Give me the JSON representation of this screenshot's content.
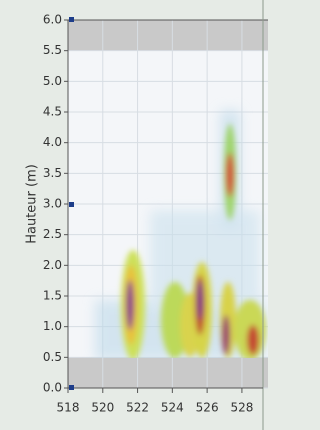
{
  "chart_data": {
    "type": "heatmap",
    "y_label": "Hauteur (m)",
    "xlim": [
      518,
      529.5
    ],
    "xticks": [
      518,
      520,
      522,
      524,
      526,
      528
    ],
    "ylim": [
      0,
      6
    ],
    "yticks": [
      {
        "value": 0,
        "label": "0.0"
      },
      {
        "value": 0.5,
        "label": "0.5"
      },
      {
        "value": 1,
        "label": "1.0"
      },
      {
        "value": 1.5,
        "label": "1.5"
      },
      {
        "value": 2,
        "label": "2.0"
      },
      {
        "value": 2.5,
        "label": "2.5"
      },
      {
        "value": 3,
        "label": "3.0"
      },
      {
        "value": 3.5,
        "label": "3.5"
      },
      {
        "value": 4,
        "label": "4.0"
      },
      {
        "value": 4.5,
        "label": "4.5"
      },
      {
        "value": 5,
        "label": "5.0"
      },
      {
        "value": 5.5,
        "label": "5.5"
      },
      {
        "value": 6,
        "label": "6.0"
      }
    ],
    "valid_range": [
      0.5,
      5.5
    ],
    "grid": true
  }
}
